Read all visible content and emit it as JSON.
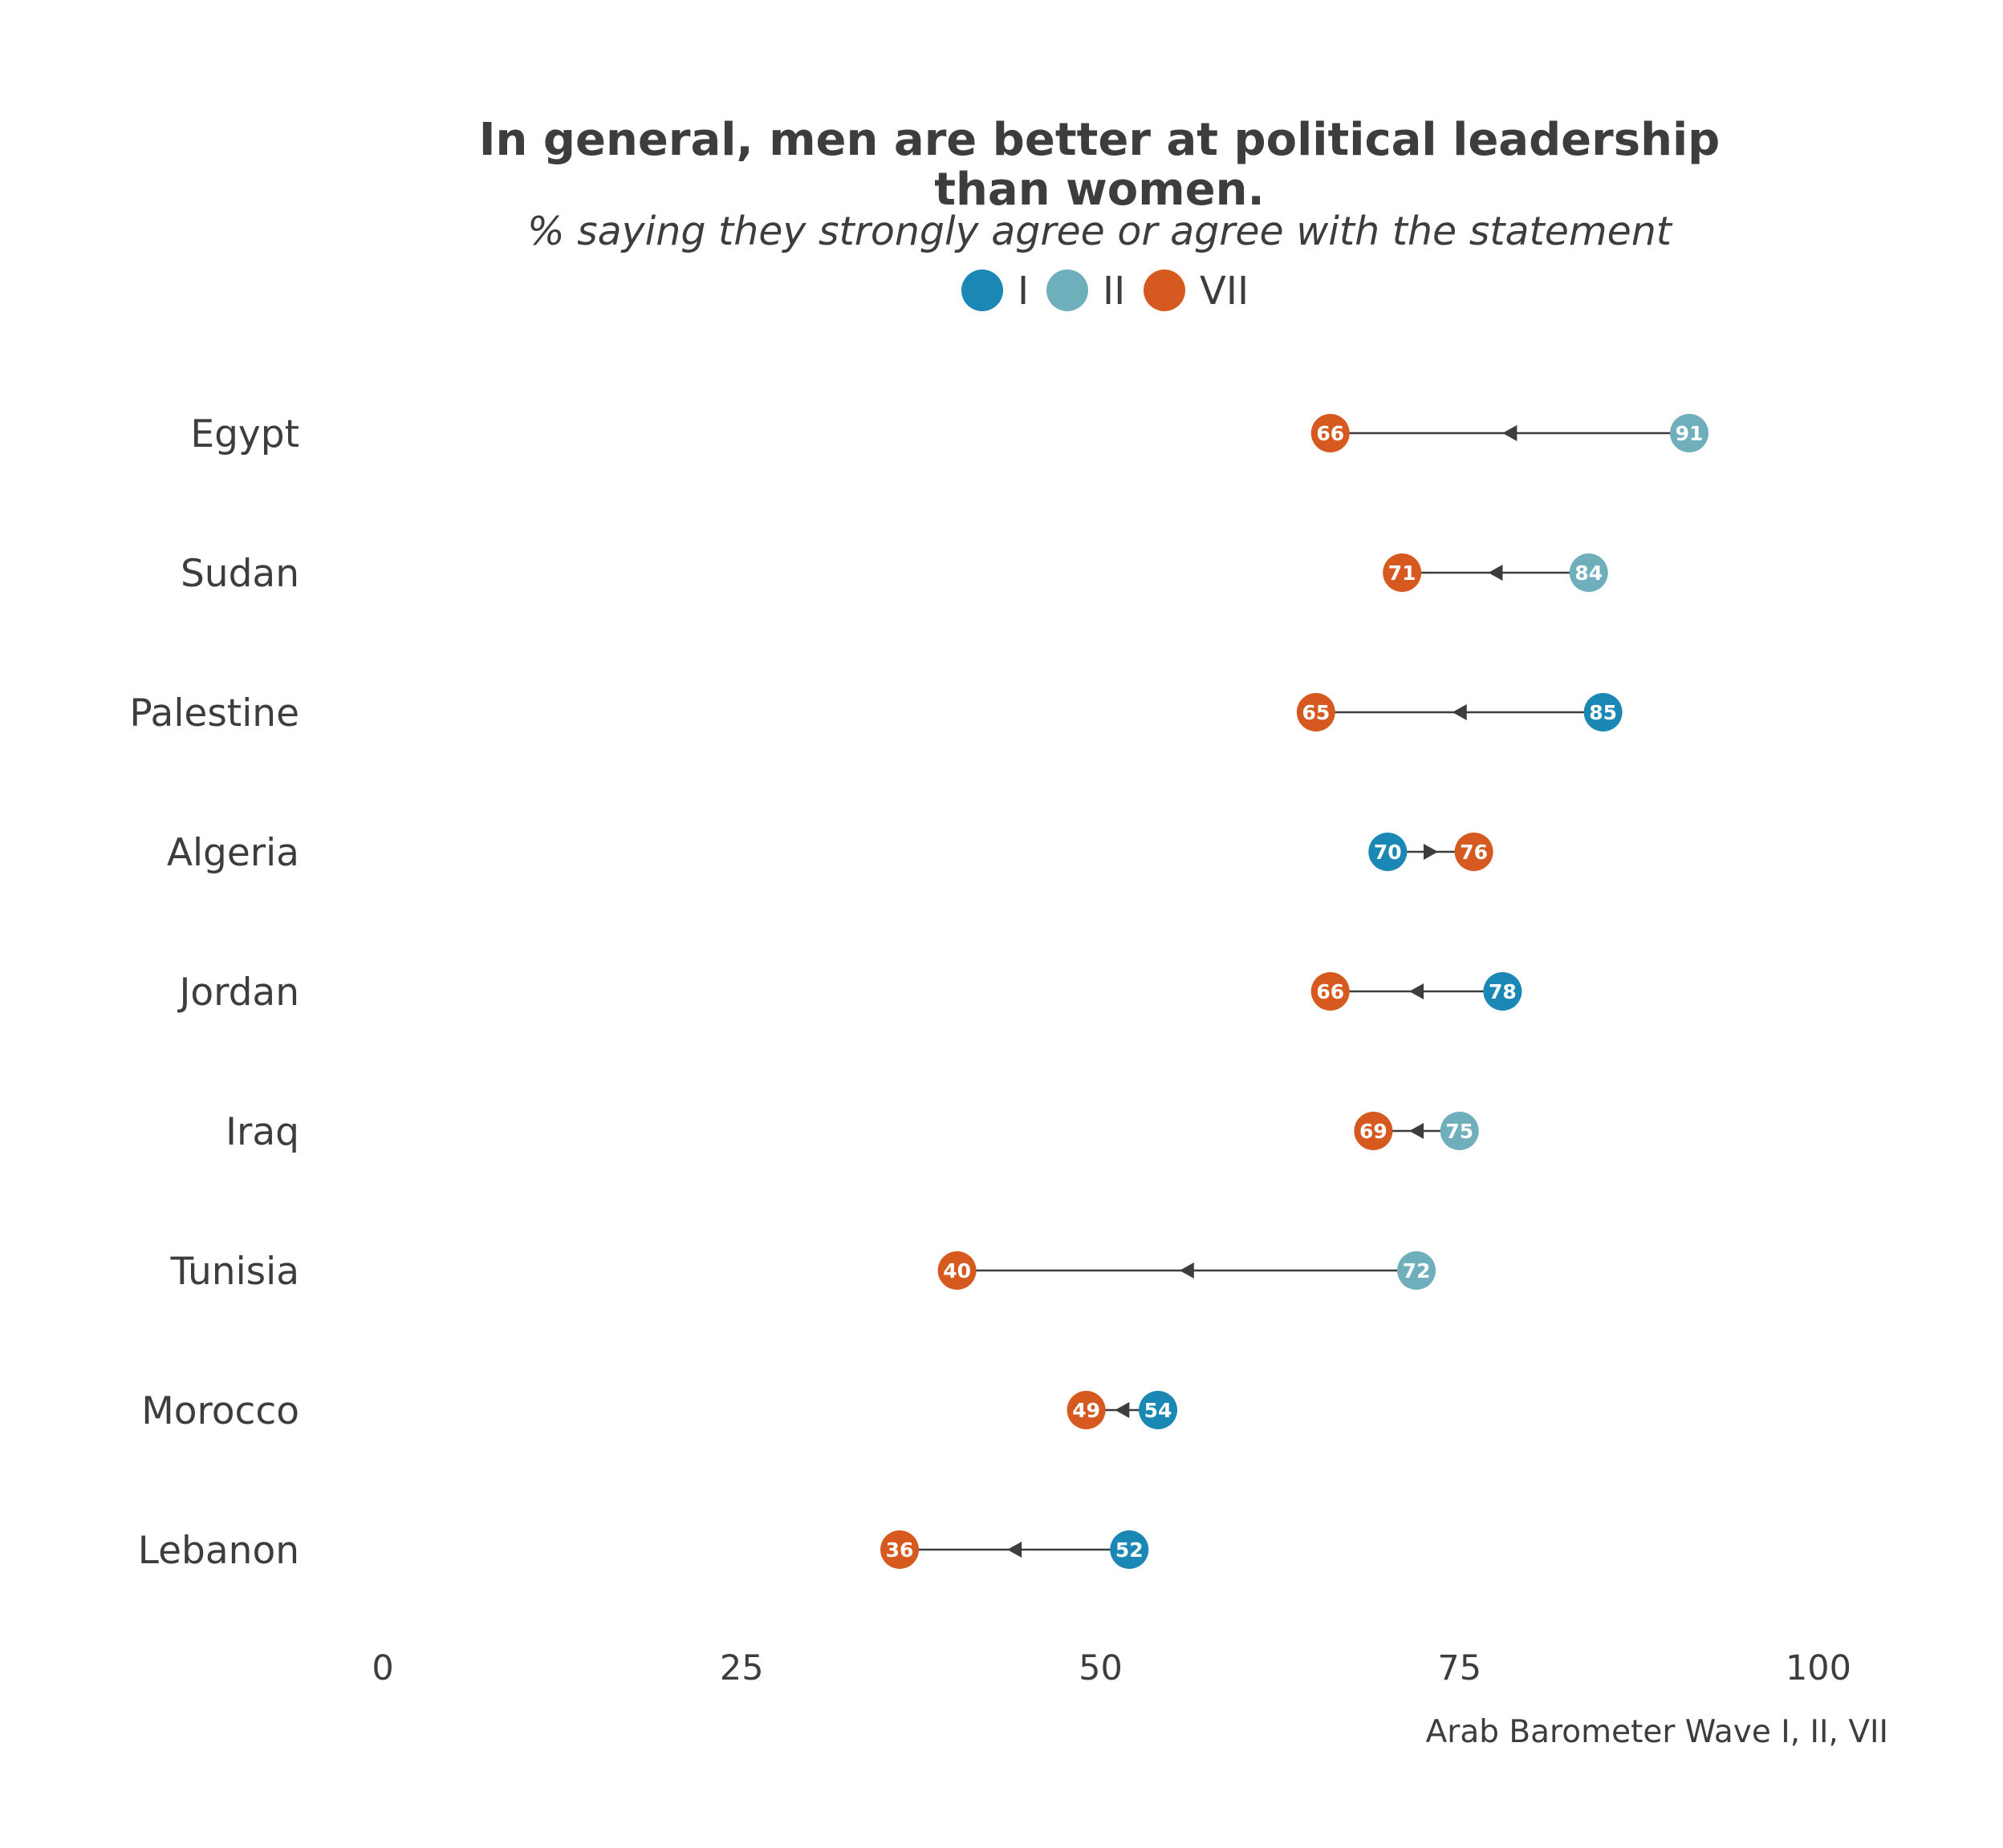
{
  "chart_data": {
    "type": "dumbbell",
    "title_lines": [
      "In general, men are better at political leadership",
      "than women."
    ],
    "subtitle": "% saying they strongly agree or agree with the statement",
    "caption": "Arab Barometer Wave I, II, VII",
    "xlim": [
      0,
      100
    ],
    "xticks": [
      "0",
      "25",
      "50",
      "75",
      "100"
    ],
    "legend_position": "top-center",
    "series": [
      {
        "name": "I",
        "color": "#1a87b4"
      },
      {
        "name": "II",
        "color": "#6faebb"
      },
      {
        "name": "VII",
        "color": "#d65a1f"
      }
    ],
    "rows": [
      {
        "country": "Egypt",
        "from": {
          "wave": "II",
          "value": 91
        },
        "to": {
          "wave": "VII",
          "value": 66
        }
      },
      {
        "country": "Sudan",
        "from": {
          "wave": "II",
          "value": 84
        },
        "to": {
          "wave": "VII",
          "value": 71
        }
      },
      {
        "country": "Palestine",
        "from": {
          "wave": "I",
          "value": 85
        },
        "to": {
          "wave": "VII",
          "value": 65
        }
      },
      {
        "country": "Algeria",
        "from": {
          "wave": "I",
          "value": 70
        },
        "to": {
          "wave": "VII",
          "value": 76
        }
      },
      {
        "country": "Jordan",
        "from": {
          "wave": "I",
          "value": 78
        },
        "to": {
          "wave": "VII",
          "value": 66
        }
      },
      {
        "country": "Iraq",
        "from": {
          "wave": "II",
          "value": 75
        },
        "to": {
          "wave": "VII",
          "value": 69
        }
      },
      {
        "country": "Tunisia",
        "from": {
          "wave": "II",
          "value": 72
        },
        "to": {
          "wave": "VII",
          "value": 40
        }
      },
      {
        "country": "Morocco",
        "from": {
          "wave": "I",
          "value": 54
        },
        "to": {
          "wave": "VII",
          "value": 49
        }
      },
      {
        "country": "Lebanon",
        "from": {
          "wave": "I",
          "value": 52
        },
        "to": {
          "wave": "VII",
          "value": 36
        }
      }
    ]
  }
}
